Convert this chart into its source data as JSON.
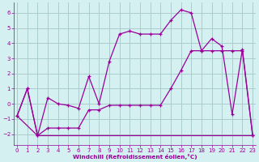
{
  "xlabel": "Windchill (Refroidissement éolien,°C)",
  "background_color": "#d4f0f0",
  "grid_color": "#aacccc",
  "line_color": "#990099",
  "x_ticks": [
    0,
    1,
    2,
    3,
    4,
    5,
    6,
    7,
    8,
    9,
    10,
    11,
    12,
    13,
    14,
    15,
    16,
    17,
    18,
    19,
    20,
    21,
    22,
    23
  ],
  "y_ticks": [
    -2,
    -1,
    0,
    1,
    2,
    3,
    4,
    5,
    6
  ],
  "xlim": [
    -0.3,
    23.3
  ],
  "ylim": [
    -2.7,
    6.7
  ],
  "series1_x": [
    0,
    1,
    2,
    3,
    4,
    5,
    6,
    7,
    8,
    9,
    10,
    11,
    12,
    13,
    14,
    15,
    16,
    17,
    18,
    19,
    20,
    21,
    22,
    23
  ],
  "series1_y": [
    -0.8,
    1.0,
    -2.1,
    0.4,
    0.0,
    -0.1,
    -0.3,
    1.8,
    0.0,
    2.8,
    4.6,
    4.8,
    4.6,
    4.6,
    4.6,
    5.5,
    6.2,
    6.0,
    3.5,
    4.3,
    3.8,
    -0.7,
    3.6,
    -2.1
  ],
  "series2_x": [
    0,
    1,
    2,
    3,
    4,
    5,
    6,
    7,
    8,
    9,
    10,
    11,
    12,
    13,
    14,
    15,
    16,
    17,
    18,
    19,
    20,
    21,
    22,
    23
  ],
  "series2_y": [
    -0.8,
    1.0,
    -2.1,
    -1.6,
    -1.6,
    -1.6,
    -1.6,
    -0.4,
    -0.4,
    -0.1,
    -0.1,
    -0.1,
    -0.1,
    -0.1,
    -0.1,
    1.0,
    2.2,
    3.5,
    3.5,
    3.5,
    3.5,
    3.5,
    3.5,
    -2.1
  ],
  "series3_x": [
    0,
    2,
    14,
    23
  ],
  "series3_y": [
    -0.8,
    -2.1,
    -2.1,
    -2.1
  ]
}
